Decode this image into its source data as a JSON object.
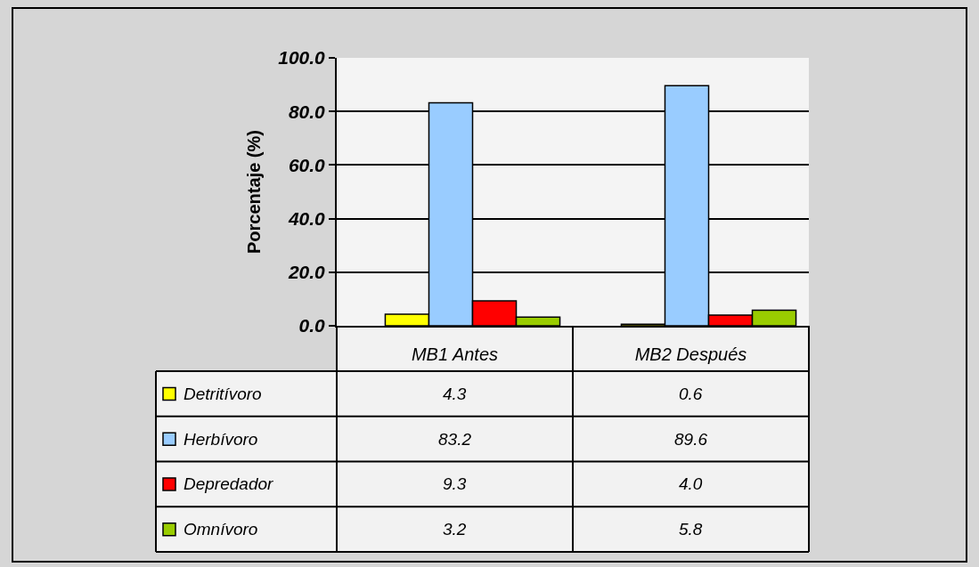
{
  "chart_data": {
    "type": "bar",
    "ylabel": "Porcentaje (%)",
    "categories": [
      "MB1 Antes",
      "MB2 Después"
    ],
    "series": [
      {
        "name": "Detritívoro",
        "color": "#ffff00",
        "values": [
          4.3,
          0.6
        ],
        "value_labels": [
          "4.3",
          "0.6"
        ]
      },
      {
        "name": "Herbívoro",
        "color": "#99ccff",
        "values": [
          83.2,
          89.6
        ],
        "value_labels": [
          "83.2",
          "89.6"
        ]
      },
      {
        "name": "Depredador",
        "color": "#ff0000",
        "values": [
          9.3,
          4.0
        ],
        "value_labels": [
          "9.3",
          "4.0"
        ]
      },
      {
        "name": "Omnívoro",
        "color": "#99cc00",
        "values": [
          3.2,
          5.8
        ],
        "value_labels": [
          "3.2",
          "5.8"
        ]
      }
    ],
    "ylim": [
      0,
      100
    ],
    "yticks": [
      {
        "value": 0,
        "label": "0.0"
      },
      {
        "value": 20,
        "label": "20.0"
      },
      {
        "value": 40,
        "label": "40.0"
      },
      {
        "value": 60,
        "label": "60.0"
      },
      {
        "value": 80,
        "label": "80.0"
      },
      {
        "value": 100,
        "label": "100.0"
      }
    ],
    "grid": "y",
    "legend": "bottom"
  }
}
